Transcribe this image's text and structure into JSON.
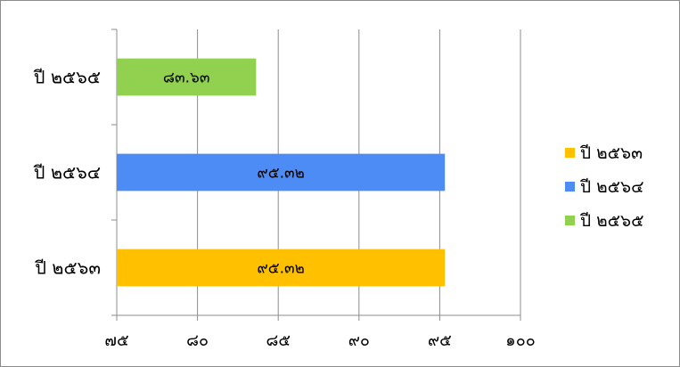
{
  "chart_data": {
    "type": "bar",
    "orientation": "horizontal",
    "categories": [
      "ปี ๒๕๖๓",
      "ปี ๒๕๖๔",
      "ปี ๒๕๖๕"
    ],
    "values": [
      95.32,
      95.32,
      83.63
    ],
    "value_labels": [
      "๙๕.๓๒",
      "๙๕.๓๒",
      "๘๓.๖๓"
    ],
    "colors": [
      "#FFC000",
      "#4D8CF5",
      "#92D050"
    ],
    "xlim": [
      75,
      100
    ],
    "ticks": [
      {
        "value": 75,
        "label": "๗๕"
      },
      {
        "value": 80,
        "label": "๘๐"
      },
      {
        "value": 85,
        "label": "๘๕"
      },
      {
        "value": 90,
        "label": "๙๐"
      },
      {
        "value": 95,
        "label": "๙๕"
      },
      {
        "value": 100,
        "label": "๑๐๐"
      }
    ],
    "grid": true,
    "legend": {
      "position": "right",
      "entries": [
        "ปี ๒๕๖๓",
        "ปี ๒๕๖๔",
        "ปี ๒๕๖๕"
      ]
    }
  }
}
